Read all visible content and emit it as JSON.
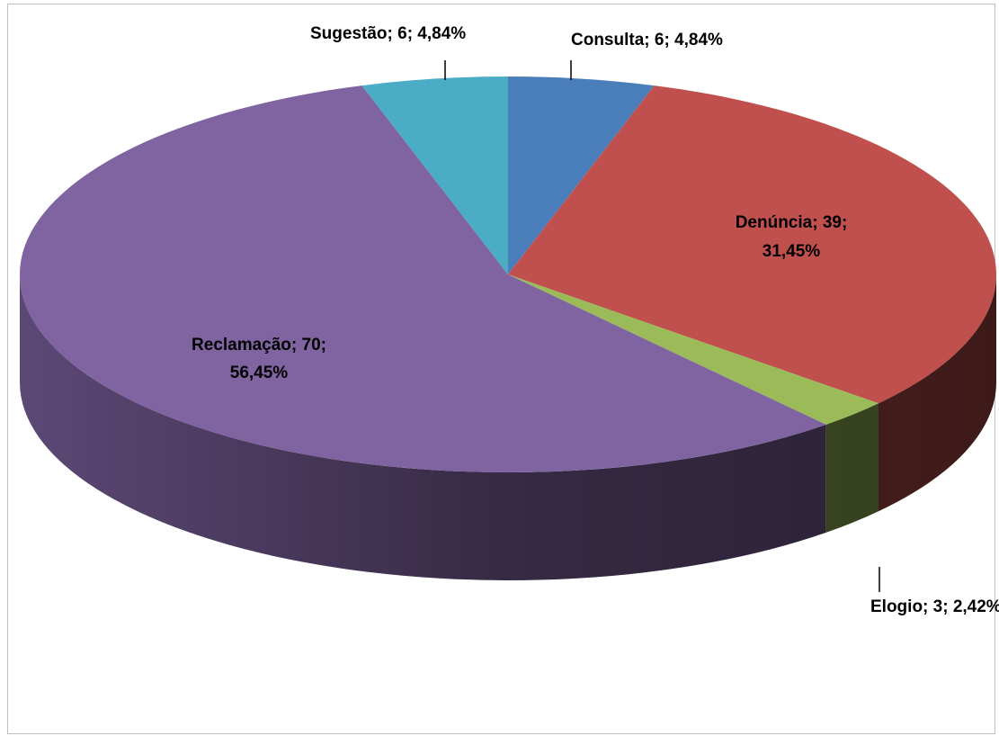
{
  "chart_data": {
    "type": "pie",
    "style": "3d",
    "slices": [
      {
        "name": "Consulta",
        "value": 6,
        "percent": "4,84%",
        "label_line1": "Consulta; 6; 4,84%",
        "label_line2": "",
        "color": "#4a7ebb"
      },
      {
        "name": "Denúncia",
        "value": 39,
        "percent": "31,45%",
        "label_line1": "Denúncia; 39;",
        "label_line2": "31,45%",
        "color": "#c0504d"
      },
      {
        "name": "Elogio",
        "value": 3,
        "percent": "2,42%",
        "label_line1": "Elogio; 3; 2,42%",
        "label_line2": "",
        "color": "#9bbb59"
      },
      {
        "name": "Reclamação",
        "value": 70,
        "percent": "56,45%",
        "label_line1": "Reclamação; 70;",
        "label_line2": "56,45%",
        "color": "#8064a2"
      },
      {
        "name": "Sugestão",
        "value": 6,
        "percent": "4,84%",
        "label_line1": "Sugestão; 6; 4,84%",
        "label_line2": "",
        "color": "#4bacc6"
      }
    ],
    "legend": "none",
    "title": ""
  }
}
